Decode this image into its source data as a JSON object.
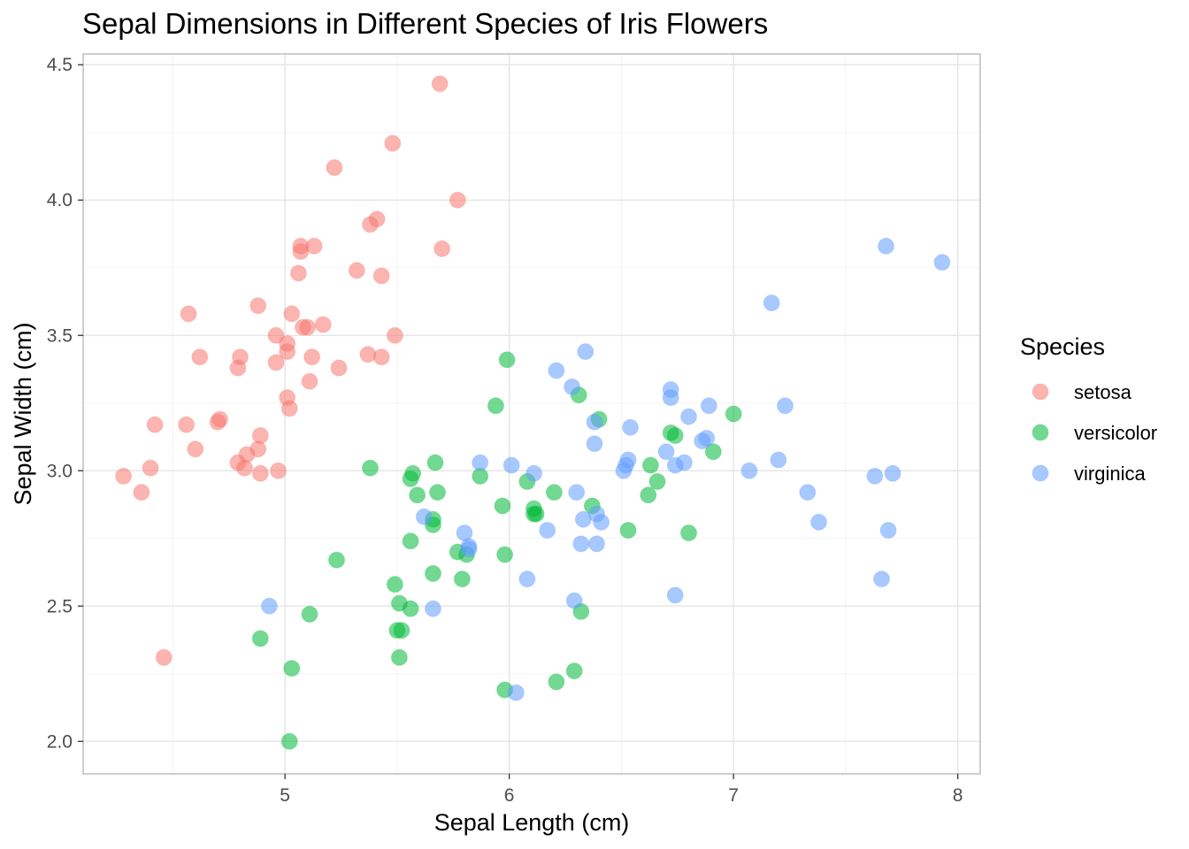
{
  "chart_data": {
    "type": "scatter",
    "title": "Sepal Dimensions in Different Species of Iris Flowers",
    "xlabel": "Sepal Length (cm)",
    "ylabel": "Sepal Width (cm)",
    "xlim": [
      4.1,
      8.1
    ],
    "ylim": [
      1.88,
      4.54
    ],
    "x_ticks": [
      5,
      6,
      7,
      8
    ],
    "y_ticks": [
      2.0,
      2.5,
      3.0,
      3.5,
      4.0,
      4.5
    ],
    "x_tick_labels": [
      "5",
      "6",
      "7",
      "8"
    ],
    "y_tick_labels": [
      "2.0",
      "2.5",
      "3.0",
      "3.5",
      "4.0",
      "4.5"
    ],
    "grid": true,
    "legend": {
      "title": "Species",
      "position": "right"
    },
    "point_opacity": 0.55,
    "series": [
      {
        "name": "setosa",
        "color": "#F8766D",
        "points": [
          [
            4.28,
            2.98
          ],
          [
            4.36,
            2.92
          ],
          [
            4.4,
            3.01
          ],
          [
            4.42,
            3.17
          ],
          [
            4.46,
            2.31
          ],
          [
            4.56,
            3.17
          ],
          [
            4.57,
            3.58
          ],
          [
            4.6,
            3.08
          ],
          [
            4.62,
            3.42
          ],
          [
            4.7,
            3.18
          ],
          [
            4.71,
            3.19
          ],
          [
            4.79,
            3.38
          ],
          [
            4.79,
            3.03
          ],
          [
            4.8,
            3.42
          ],
          [
            4.82,
            3.01
          ],
          [
            4.83,
            3.06
          ],
          [
            4.88,
            3.08
          ],
          [
            4.88,
            3.61
          ],
          [
            4.89,
            2.99
          ],
          [
            4.89,
            3.13
          ],
          [
            4.96,
            3.5
          ],
          [
            4.96,
            3.4
          ],
          [
            4.97,
            3.0
          ],
          [
            5.01,
            3.47
          ],
          [
            5.01,
            3.44
          ],
          [
            5.01,
            3.27
          ],
          [
            5.02,
            3.23
          ],
          [
            5.03,
            3.58
          ],
          [
            5.06,
            3.73
          ],
          [
            5.07,
            3.83
          ],
          [
            5.07,
            3.81
          ],
          [
            5.08,
            3.53
          ],
          [
            5.1,
            3.53
          ],
          [
            5.11,
            3.33
          ],
          [
            5.12,
            3.42
          ],
          [
            5.13,
            3.83
          ],
          [
            5.17,
            3.54
          ],
          [
            5.22,
            4.12
          ],
          [
            5.24,
            3.38
          ],
          [
            5.32,
            3.74
          ],
          [
            5.37,
            3.43
          ],
          [
            5.38,
            3.91
          ],
          [
            5.41,
            3.93
          ],
          [
            5.43,
            3.72
          ],
          [
            5.43,
            3.42
          ],
          [
            5.48,
            4.21
          ],
          [
            5.49,
            3.5
          ],
          [
            5.69,
            4.43
          ],
          [
            5.7,
            3.82
          ],
          [
            5.77,
            4.0
          ]
        ]
      },
      {
        "name": "versicolor",
        "color": "#00BA38",
        "points": [
          [
            4.89,
            2.38
          ],
          [
            5.02,
            2.0
          ],
          [
            5.03,
            2.27
          ],
          [
            5.11,
            2.47
          ],
          [
            5.23,
            2.67
          ],
          [
            5.38,
            3.01
          ],
          [
            5.49,
            2.58
          ],
          [
            5.5,
            2.41
          ],
          [
            5.51,
            2.51
          ],
          [
            5.51,
            2.31
          ],
          [
            5.52,
            2.41
          ],
          [
            5.56,
            2.74
          ],
          [
            5.56,
            2.49
          ],
          [
            5.56,
            2.97
          ],
          [
            5.57,
            2.99
          ],
          [
            5.59,
            2.91
          ],
          [
            5.66,
            2.62
          ],
          [
            5.66,
            2.8
          ],
          [
            5.66,
            2.82
          ],
          [
            5.67,
            3.03
          ],
          [
            5.68,
            2.92
          ],
          [
            5.77,
            2.7
          ],
          [
            5.79,
            2.6
          ],
          [
            5.81,
            2.69
          ],
          [
            5.87,
            2.98
          ],
          [
            5.94,
            3.24
          ],
          [
            5.97,
            2.87
          ],
          [
            5.98,
            2.19
          ],
          [
            5.98,
            2.69
          ],
          [
            5.99,
            3.41
          ],
          [
            6.08,
            2.96
          ],
          [
            6.11,
            2.86
          ],
          [
            6.11,
            2.84
          ],
          [
            6.12,
            2.84
          ],
          [
            6.2,
            2.92
          ],
          [
            6.21,
            2.22
          ],
          [
            6.29,
            2.26
          ],
          [
            6.31,
            3.28
          ],
          [
            6.32,
            2.48
          ],
          [
            6.37,
            2.87
          ],
          [
            6.4,
            3.19
          ],
          [
            6.53,
            2.78
          ],
          [
            6.62,
            2.91
          ],
          [
            6.63,
            3.02
          ],
          [
            6.66,
            2.96
          ],
          [
            6.72,
            3.14
          ],
          [
            6.74,
            3.13
          ],
          [
            6.8,
            2.77
          ],
          [
            6.91,
            3.07
          ],
          [
            7.0,
            3.21
          ]
        ]
      },
      {
        "name": "virginica",
        "color": "#619CFF",
        "points": [
          [
            4.93,
            2.5
          ],
          [
            5.62,
            2.83
          ],
          [
            5.66,
            2.49
          ],
          [
            5.8,
            2.77
          ],
          [
            5.82,
            2.72
          ],
          [
            5.82,
            2.71
          ],
          [
            5.87,
            3.03
          ],
          [
            6.01,
            3.02
          ],
          [
            6.03,
            2.18
          ],
          [
            6.08,
            2.6
          ],
          [
            6.11,
            2.99
          ],
          [
            6.17,
            2.78
          ],
          [
            6.21,
            3.37
          ],
          [
            6.28,
            3.31
          ],
          [
            6.29,
            2.52
          ],
          [
            6.3,
            2.92
          ],
          [
            6.32,
            2.73
          ],
          [
            6.33,
            2.82
          ],
          [
            6.34,
            3.44
          ],
          [
            6.38,
            3.1
          ],
          [
            6.38,
            3.18
          ],
          [
            6.39,
            2.84
          ],
          [
            6.39,
            2.73
          ],
          [
            6.41,
            2.81
          ],
          [
            6.51,
            3.0
          ],
          [
            6.52,
            3.02
          ],
          [
            6.53,
            3.04
          ],
          [
            6.54,
            3.16
          ],
          [
            6.7,
            3.07
          ],
          [
            6.72,
            3.27
          ],
          [
            6.72,
            3.3
          ],
          [
            6.74,
            2.54
          ],
          [
            6.74,
            3.02
          ],
          [
            6.78,
            3.03
          ],
          [
            6.8,
            3.2
          ],
          [
            6.86,
            3.11
          ],
          [
            6.88,
            3.12
          ],
          [
            6.89,
            3.24
          ],
          [
            7.07,
            3.0
          ],
          [
            7.17,
            3.62
          ],
          [
            7.2,
            3.04
          ],
          [
            7.23,
            3.24
          ],
          [
            7.33,
            2.92
          ],
          [
            7.38,
            2.81
          ],
          [
            7.63,
            2.98
          ],
          [
            7.66,
            2.6
          ],
          [
            7.68,
            3.83
          ],
          [
            7.69,
            2.78
          ],
          [
            7.71,
            2.99
          ],
          [
            7.93,
            3.77
          ]
        ]
      }
    ]
  }
}
